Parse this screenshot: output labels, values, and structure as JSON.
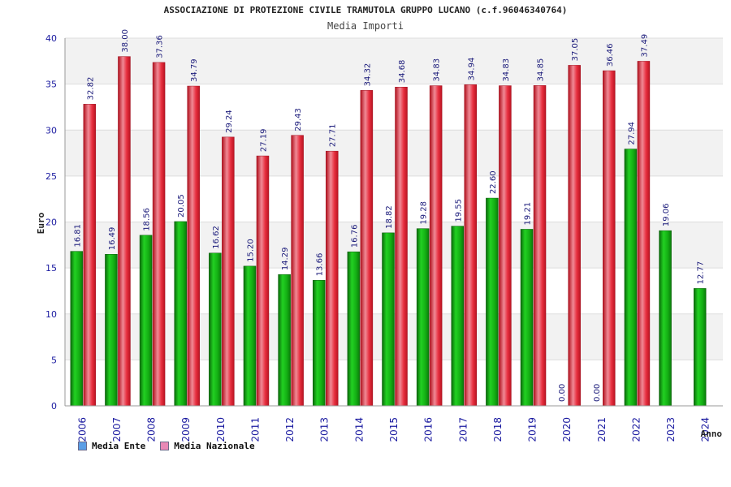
{
  "colors": {
    "series_green": "#10b010",
    "series_red": "#ee2233",
    "legend_ente": "#5b9ee6",
    "legend_nazionale": "#e889b6",
    "grid_band": "#f2f2f2"
  },
  "chart_data": {
    "type": "bar",
    "title": "ASSOCIAZIONE DI PROTEZIONE CIVILE TRAMUTOLA GRUPPO LUCANO (c.f.96046340764)",
    "subtitle": "Media Importi",
    "xlabel": "Anno",
    "ylabel": "Euro",
    "ylim": [
      0,
      40
    ],
    "yticks": [
      0,
      5,
      10,
      15,
      20,
      25,
      30,
      35,
      40
    ],
    "grid": true,
    "legend_position": "bottom-left",
    "categories": [
      "2006",
      "2007",
      "2008",
      "2009",
      "2010",
      "2011",
      "2012",
      "2013",
      "2014",
      "2015",
      "2016",
      "2017",
      "2018",
      "2019",
      "2020",
      "2021",
      "2022",
      "2023",
      "2024"
    ],
    "series": [
      {
        "name": "Media Ente",
        "values": [
          16.81,
          16.49,
          18.56,
          20.05,
          16.62,
          15.2,
          14.29,
          13.66,
          16.76,
          18.82,
          19.28,
          19.55,
          22.6,
          19.21,
          0.0,
          0.0,
          27.94,
          19.06,
          12.77
        ],
        "labels": [
          "16.81",
          "16.49",
          "18.56",
          "20.05",
          "16.62",
          "15.20",
          "14.29",
          "13.66",
          "16.76",
          "18.82",
          "19.28",
          "19.55",
          "22.60",
          "19.21",
          "0.00",
          "0.00",
          "27.94",
          "19.06",
          "12.77"
        ]
      },
      {
        "name": "Media Nazionale",
        "values": [
          32.82,
          38.0,
          37.36,
          34.79,
          29.24,
          27.19,
          29.43,
          27.71,
          34.32,
          34.68,
          34.83,
          34.94,
          34.83,
          34.85,
          37.05,
          36.46,
          37.49,
          null,
          null
        ],
        "labels": [
          "32.82",
          "38.00",
          "37.36",
          "34.79",
          "29.24",
          "27.19",
          "29.43",
          "27.71",
          "34.32",
          "34.68",
          "34.83",
          "34.94",
          "34.83",
          "34.85",
          "37.05",
          "36.46",
          "37.49",
          "",
          ""
        ]
      }
    ]
  }
}
